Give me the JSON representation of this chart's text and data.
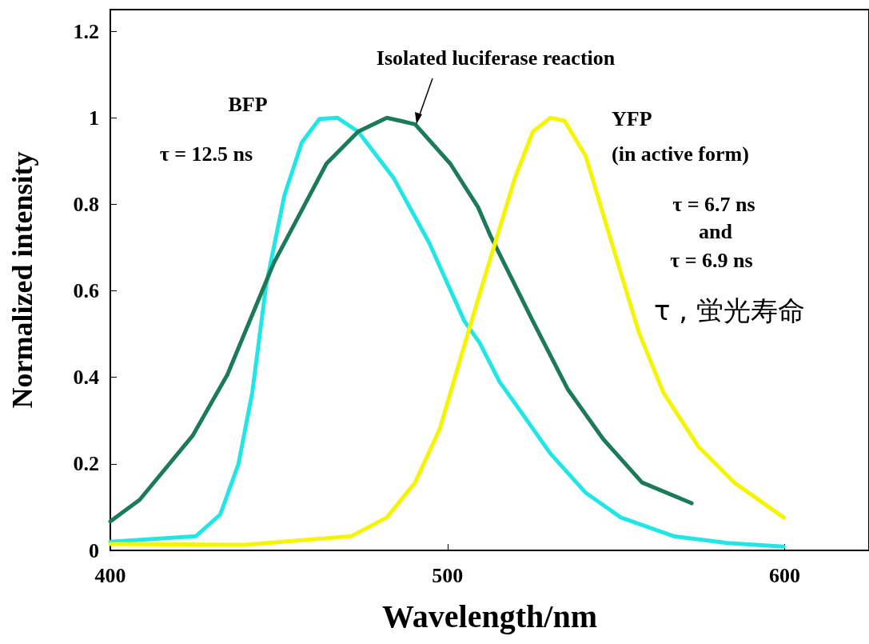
{
  "chart_data": {
    "type": "line",
    "xlabel": "Wavelength/nm",
    "ylabel": "Normalized intensity",
    "xlim": [
      400,
      625
    ],
    "xticks": [
      400,
      500,
      600
    ],
    "ylim": [
      0,
      1.25
    ],
    "yticks": [
      0,
      0.2,
      0.4,
      0.6,
      0.8,
      1,
      1.2
    ],
    "grid": false,
    "legend": false,
    "marker": "none",
    "line_style": "solid",
    "series": [
      {
        "name": "BFP",
        "color": "#22e5e5",
        "x": [
          400,
          425.4,
          432.6,
          438,
          442.1,
          446.2,
          451.6,
          456.8,
          462,
          467.3,
          473.5,
          484,
          494.5,
          505,
          509.5,
          515.5,
          520,
          530.5,
          541,
          551.4,
          567,
          583,
          599.7
        ],
        "values": [
          0.02,
          0.033,
          0.083,
          0.2,
          0.365,
          0.613,
          0.82,
          0.943,
          0.997,
          1.0,
          0.968,
          0.861,
          0.712,
          0.53,
          0.48,
          0.389,
          0.34,
          0.224,
          0.133,
          0.076,
          0.033,
          0.017,
          0.009
        ]
      },
      {
        "name": "Isolated luciferase reaction",
        "color": "#1b7a57",
        "x": [
          400,
          408.7,
          424.4,
          434.7,
          448.4,
          464.1,
          473.5,
          482,
          490.4,
          500.8,
          509,
          512.7,
          525.3,
          535.7,
          546.2,
          557.7,
          572.4
        ],
        "values": [
          0.067,
          0.117,
          0.265,
          0.406,
          0.663,
          0.894,
          0.968,
          1.0,
          0.985,
          0.894,
          0.794,
          0.728,
          0.53,
          0.372,
          0.257,
          0.157,
          0.109
        ]
      },
      {
        "name": "YFP",
        "color": "#f5f500",
        "x": [
          400,
          440,
          471.5,
          482,
          490.4,
          497.7,
          504,
          510.3,
          520,
          525.3,
          530.5,
          534.7,
          541,
          549.3,
          556.7,
          564,
          574.4,
          585,
          599.7
        ],
        "values": [
          0.015,
          0.013,
          0.033,
          0.076,
          0.157,
          0.281,
          0.448,
          0.613,
          0.861,
          0.968,
          1.0,
          0.993,
          0.911,
          0.695,
          0.505,
          0.365,
          0.24,
          0.157,
          0.076
        ]
      }
    ],
    "annotations": [
      "τ = 12.5 ns",
      "(in active form)",
      "τ = 6.7 ns",
      "and",
      "τ = 6.9 ns",
      "τ , 蛍光寿命"
    ]
  }
}
